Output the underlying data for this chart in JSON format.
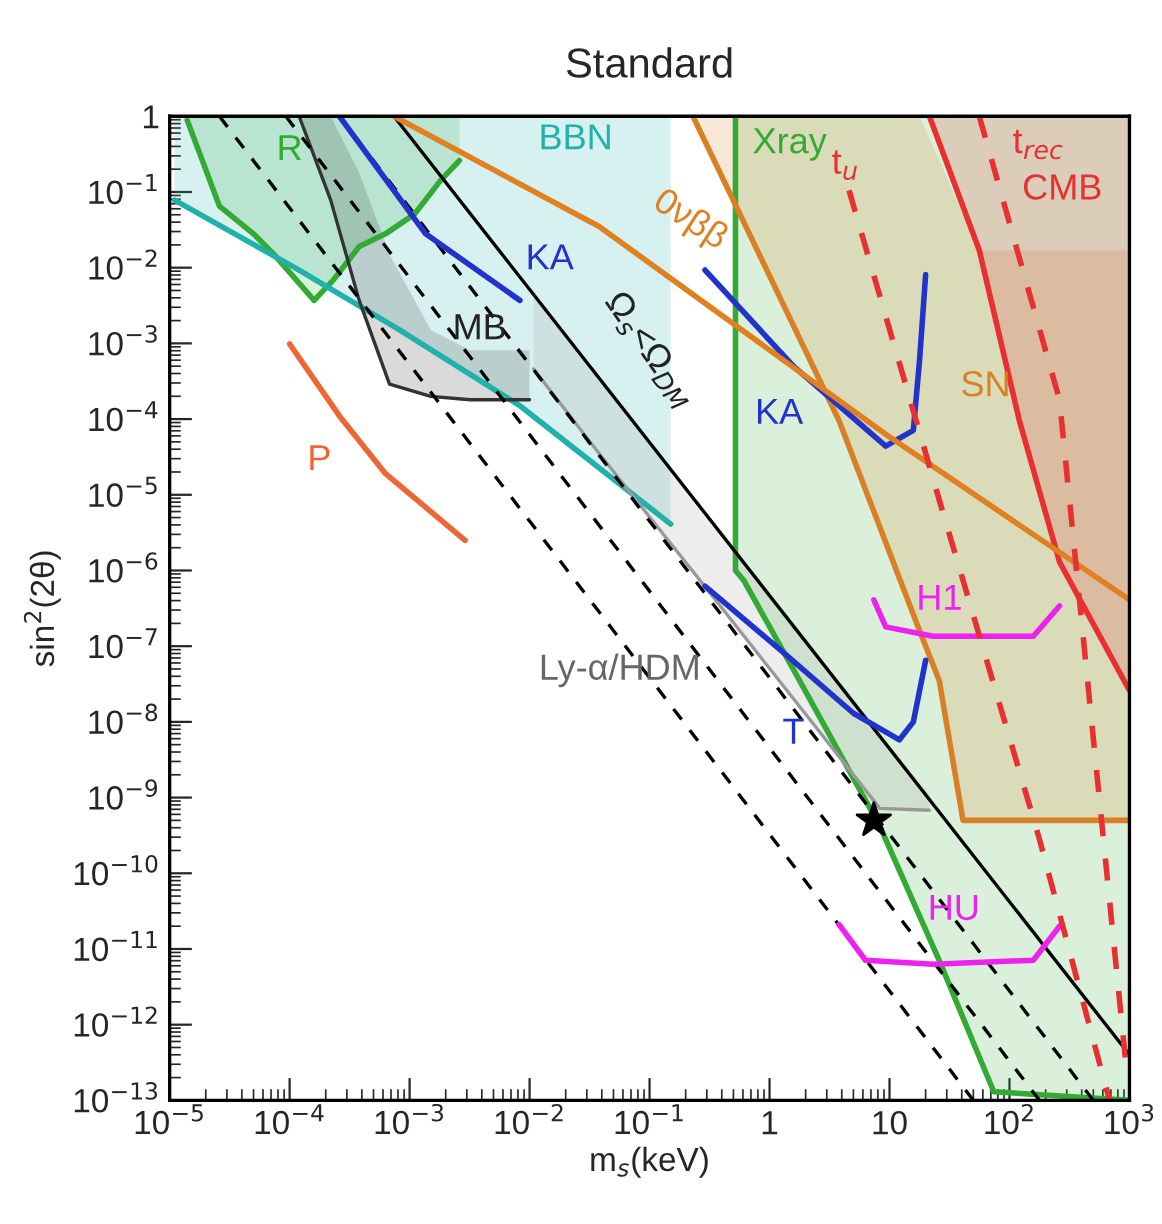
{
  "chart_data": {
    "type": "line",
    "title": "Standard",
    "xlabel": "m$_{s}$(keV)",
    "ylabel": "sin$^{2}$(2θ)",
    "log": "xy",
    "grid": false,
    "legend": false,
    "xlim": [
      1e-05,
      1000
    ],
    "ylim": [
      1e-13,
      1
    ],
    "xticks": [
      {
        "value": 1e-05,
        "label": "10$^{−5}$"
      },
      {
        "value": 0.0001,
        "label": "10$^{−4}$"
      },
      {
        "value": 0.001,
        "label": "10$^{−3}$"
      },
      {
        "value": 0.01,
        "label": "10$^{−2}$"
      },
      {
        "value": 0.1,
        "label": "10$^{−1}$"
      },
      1,
      10,
      {
        "value": 100,
        "label": "10$^{2}$"
      },
      {
        "value": 1000,
        "label": "10$^{3}$"
      }
    ],
    "yticks": [
      {
        "value": 1e-13,
        "label": "10$^{−13}$"
      },
      {
        "value": 1e-12,
        "label": "10$^{−12}$"
      },
      {
        "value": 1e-11,
        "label": "10$^{−11}$"
      },
      {
        "value": 1e-10,
        "label": "10$^{−10}$"
      },
      {
        "value": 1e-09,
        "label": "10$^{−9}$"
      },
      {
        "value": 1e-08,
        "label": "10$^{−8}$"
      },
      {
        "value": 1e-07,
        "label": "10$^{−7}$"
      },
      {
        "value": 1e-06,
        "label": "10$^{−6}$"
      },
      {
        "value": 1e-05,
        "label": "10$^{−5}$"
      },
      {
        "value": 0.0001,
        "label": "10$^{−4}$"
      },
      {
        "value": 0.001,
        "label": "10$^{−3}$"
      },
      {
        "value": 0.01,
        "label": "10$^{−2}$"
      },
      {
        "value": 0.1,
        "label": "10$^{−1}$"
      },
      1
    ],
    "series": [
      {
        "color": "#33aa33",
        "x": [
          1.4e-05,
          2.6e-05,
          5e-05,
          7.4e-05,
          0.00016,
          0.00023,
          0.00038,
          0.00063,
          0.0011,
          0.0018,
          0.0026
        ],
        "values": [
          0.89,
          0.065,
          0.028,
          0.015,
          0.0037,
          0.0068,
          0.019,
          0.028,
          0.051,
          0.14,
          0.26
        ],
        "lower": [
          0.89,
          0.065,
          0.028,
          0.015,
          0.0037,
          0.0068,
          0.019,
          0.028,
          0.051,
          0.14,
          0.26
        ],
        "upper": [
          1,
          1,
          1,
          1,
          1,
          1,
          1,
          1,
          1,
          1,
          1
        ]
      },
      {
        "color": "#20b2aa",
        "x": [
          1.1e-05,
          0.00012,
          0.00083,
          0.0083,
          0.15
        ],
        "values": [
          0.078,
          0.0093,
          0.0015,
          0.00015,
          4.1e-06
        ],
        "lower": [
          0.078,
          0.0093,
          0.0015,
          0.00015,
          4.1e-06
        ],
        "upper": [
          1,
          1,
          1,
          1,
          1
        ]
      },
      {
        "color": "#33aa33",
        "x": [
          0.52,
          0.52,
          0.61,
          1.78,
          8.3,
          26,
          74,
          1000
        ],
        "values": [
          1,
          1e-06,
          7.4e-07,
          3.5e-08,
          4.2e-10,
          7e-12,
          1.3e-13,
          1e-13
        ],
        "lower": [
          1,
          1e-06,
          7.4e-07,
          3.5e-08,
          4.2e-10,
          7e-12,
          1.3e-13,
          1e-13
        ],
        "upper": [
          1,
          1,
          1,
          1,
          1,
          1,
          1,
          1
        ]
      },
      {
        "color": "#999999",
        "x": [
          0.0108,
          0.038,
          0.26,
          1.78,
          8.3,
          21.5
        ],
        "values": [
          0.00046,
          3.5e-05,
          7.6e-07,
          1.6e-08,
          7.2e-10,
          6.8e-10
        ],
        "lower": [
          0.00046,
          3.5e-05,
          7.6e-07,
          1.6e-08,
          7.2e-10,
          6.8e-10
        ],
        "upper": [
          0.0046,
          0.00035,
          7.6e-06,
          1.6e-07,
          7.2e-09,
          1.1e-09
        ]
      },
      {
        "color": "#333333",
        "x": [
          0.00012,
          0.00022,
          0.00038,
          0.00068,
          0.0015,
          0.0032,
          0.01
        ],
        "values": [
          1,
          0.078,
          0.0037,
          0.00029,
          0.0002,
          0.00018,
          0.00018
        ],
        "lower": [
          1,
          0.078,
          0.0037,
          0.00029,
          0.0002,
          0.00018,
          0.00018
        ],
        "upper": [
          1,
          1,
          0.18,
          0.015,
          0.0015,
          0.00081,
          0.00081
        ]
      },
      {
        "color": "#d98026",
        "x": [
          0.23,
          3.8,
          17.8,
          26,
          41,
          56,
          1000
        ],
        "values": [
          1,
          9.5e-05,
          1.6e-07,
          3.5e-08,
          5e-10,
          5e-10,
          5e-10
        ],
        "lower": [
          1,
          9.5e-05,
          1.6e-07,
          3.5e-08,
          5e-10,
          5e-10,
          5e-10
        ],
        "upper": [
          1,
          1,
          1,
          0.26,
          0.051,
          0.017,
          0.017
        ]
      },
      {
        "color": "#e83030",
        "x": [
          21.5,
          56,
          121,
          261,
          1000
        ],
        "values": [
          1,
          0.017,
          9.5e-05,
          1.3e-06,
          2.6e-08
        ],
        "lower": [
          1,
          0.017,
          9.5e-05,
          1.3e-06,
          2.6e-08
        ],
        "upper": [
          1,
          1,
          1,
          1,
          1
        ]
      },
      {
        "color": "#000000",
        "line_style": "dashed",
        "x": [
          2.6e-05,
          50
        ],
        "values": [
          1,
          1e-13
        ]
      },
      {
        "color": "#000000",
        "line_style": "dashed",
        "x": [
          9.3e-05,
          178
        ],
        "values": [
          1,
          1e-13
        ]
      },
      {
        "color": "#000000",
        "line_style": "dashed",
        "x": [
          0.00026,
          500
        ],
        "values": [
          1,
          1e-13
        ]
      },
      {
        "color": "#000000",
        "line_style": "solid",
        "x": [
          0.00074,
          1000
        ],
        "values": [
          1,
          4e-13
        ]
      },
      {
        "color": "#2233cc",
        "line_style": "solid",
        "x": [
          0.00026,
          0.00136,
          0.0083
        ],
        "values": [
          1,
          0.028,
          0.0037
        ]
      },
      {
        "color": "#2233cc",
        "line_style": "solid",
        "x": [
          0.29,
          1.58,
          9.3,
          15.8,
          17.8,
          20
        ],
        "values": [
          0.0093,
          0.0005,
          4.4e-05,
          7.1e-05,
          0.0006,
          0.0081
        ]
      },
      {
        "color": "#2233cc",
        "line_style": "solid",
        "x": [
          0.29,
          1.36,
          5.0,
          12.1,
          15.8,
          20
        ],
        "values": [
          6.2e-07,
          7.8e-08,
          1.3e-08,
          5.8e-09,
          1e-08,
          6.5e-08
        ]
      },
      {
        "color": "#ee22ee",
        "line_style": "solid",
        "x": [
          7.4,
          9.3,
          23,
          158,
          261
        ],
        "values": [
          4.1e-07,
          1.8e-07,
          1.35e-07,
          1.35e-07,
          3.4e-07
        ]
      },
      {
        "color": "#ee22ee",
        "line_style": "solid",
        "x": [
          3.8,
          6.3,
          23,
          158,
          261
        ],
        "values": [
          2.1e-11,
          7.1e-12,
          6.3e-12,
          7.1e-12,
          2e-11
        ]
      },
      {
        "color": "#ee6633",
        "line_style": "solid",
        "x": [
          0.0001,
          0.00026,
          0.00063,
          0.0029
        ],
        "values": [
          0.00098,
          0.00011,
          1.9e-05,
          2.5e-06
        ]
      },
      {
        "color": "#e08020",
        "line_style": "solid",
        "x": [
          0.00074,
          0.038,
          9.3,
          1000
        ],
        "values": [
          1,
          0.035,
          6.3e-05,
          4.1e-07
        ]
      },
      {
        "color": "#e83030",
        "line_style": "dashed",
        "x": [
          4.6,
          26,
          178,
          681
        ],
        "values": [
          0.105,
          8.5e-06,
          2.8e-10,
          1e-13
        ]
      },
      {
        "color": "#e83030",
        "line_style": "dashed",
        "x": [
          56,
          261,
          927
        ],
        "values": [
          1,
          0.00018,
          3.4e-13
        ]
      },
      {
        "type": "scatter",
        "color": "#000000",
        "marker": "star",
        "x": [
          7.4
        ],
        "values": [
          5e-10
        ]
      }
    ],
    "annotations": [
      "R",
      "BBN",
      "Xray",
      "t$_{u}$",
      "t$_{rec}$",
      "CMB",
      "0νββ",
      "KA",
      "MB",
      "Ω$_{s}$<Ω$_{DM}$",
      "KA",
      "SN",
      "P",
      "H1",
      "Ly-α/HDM",
      "T",
      "HU"
    ]
  }
}
